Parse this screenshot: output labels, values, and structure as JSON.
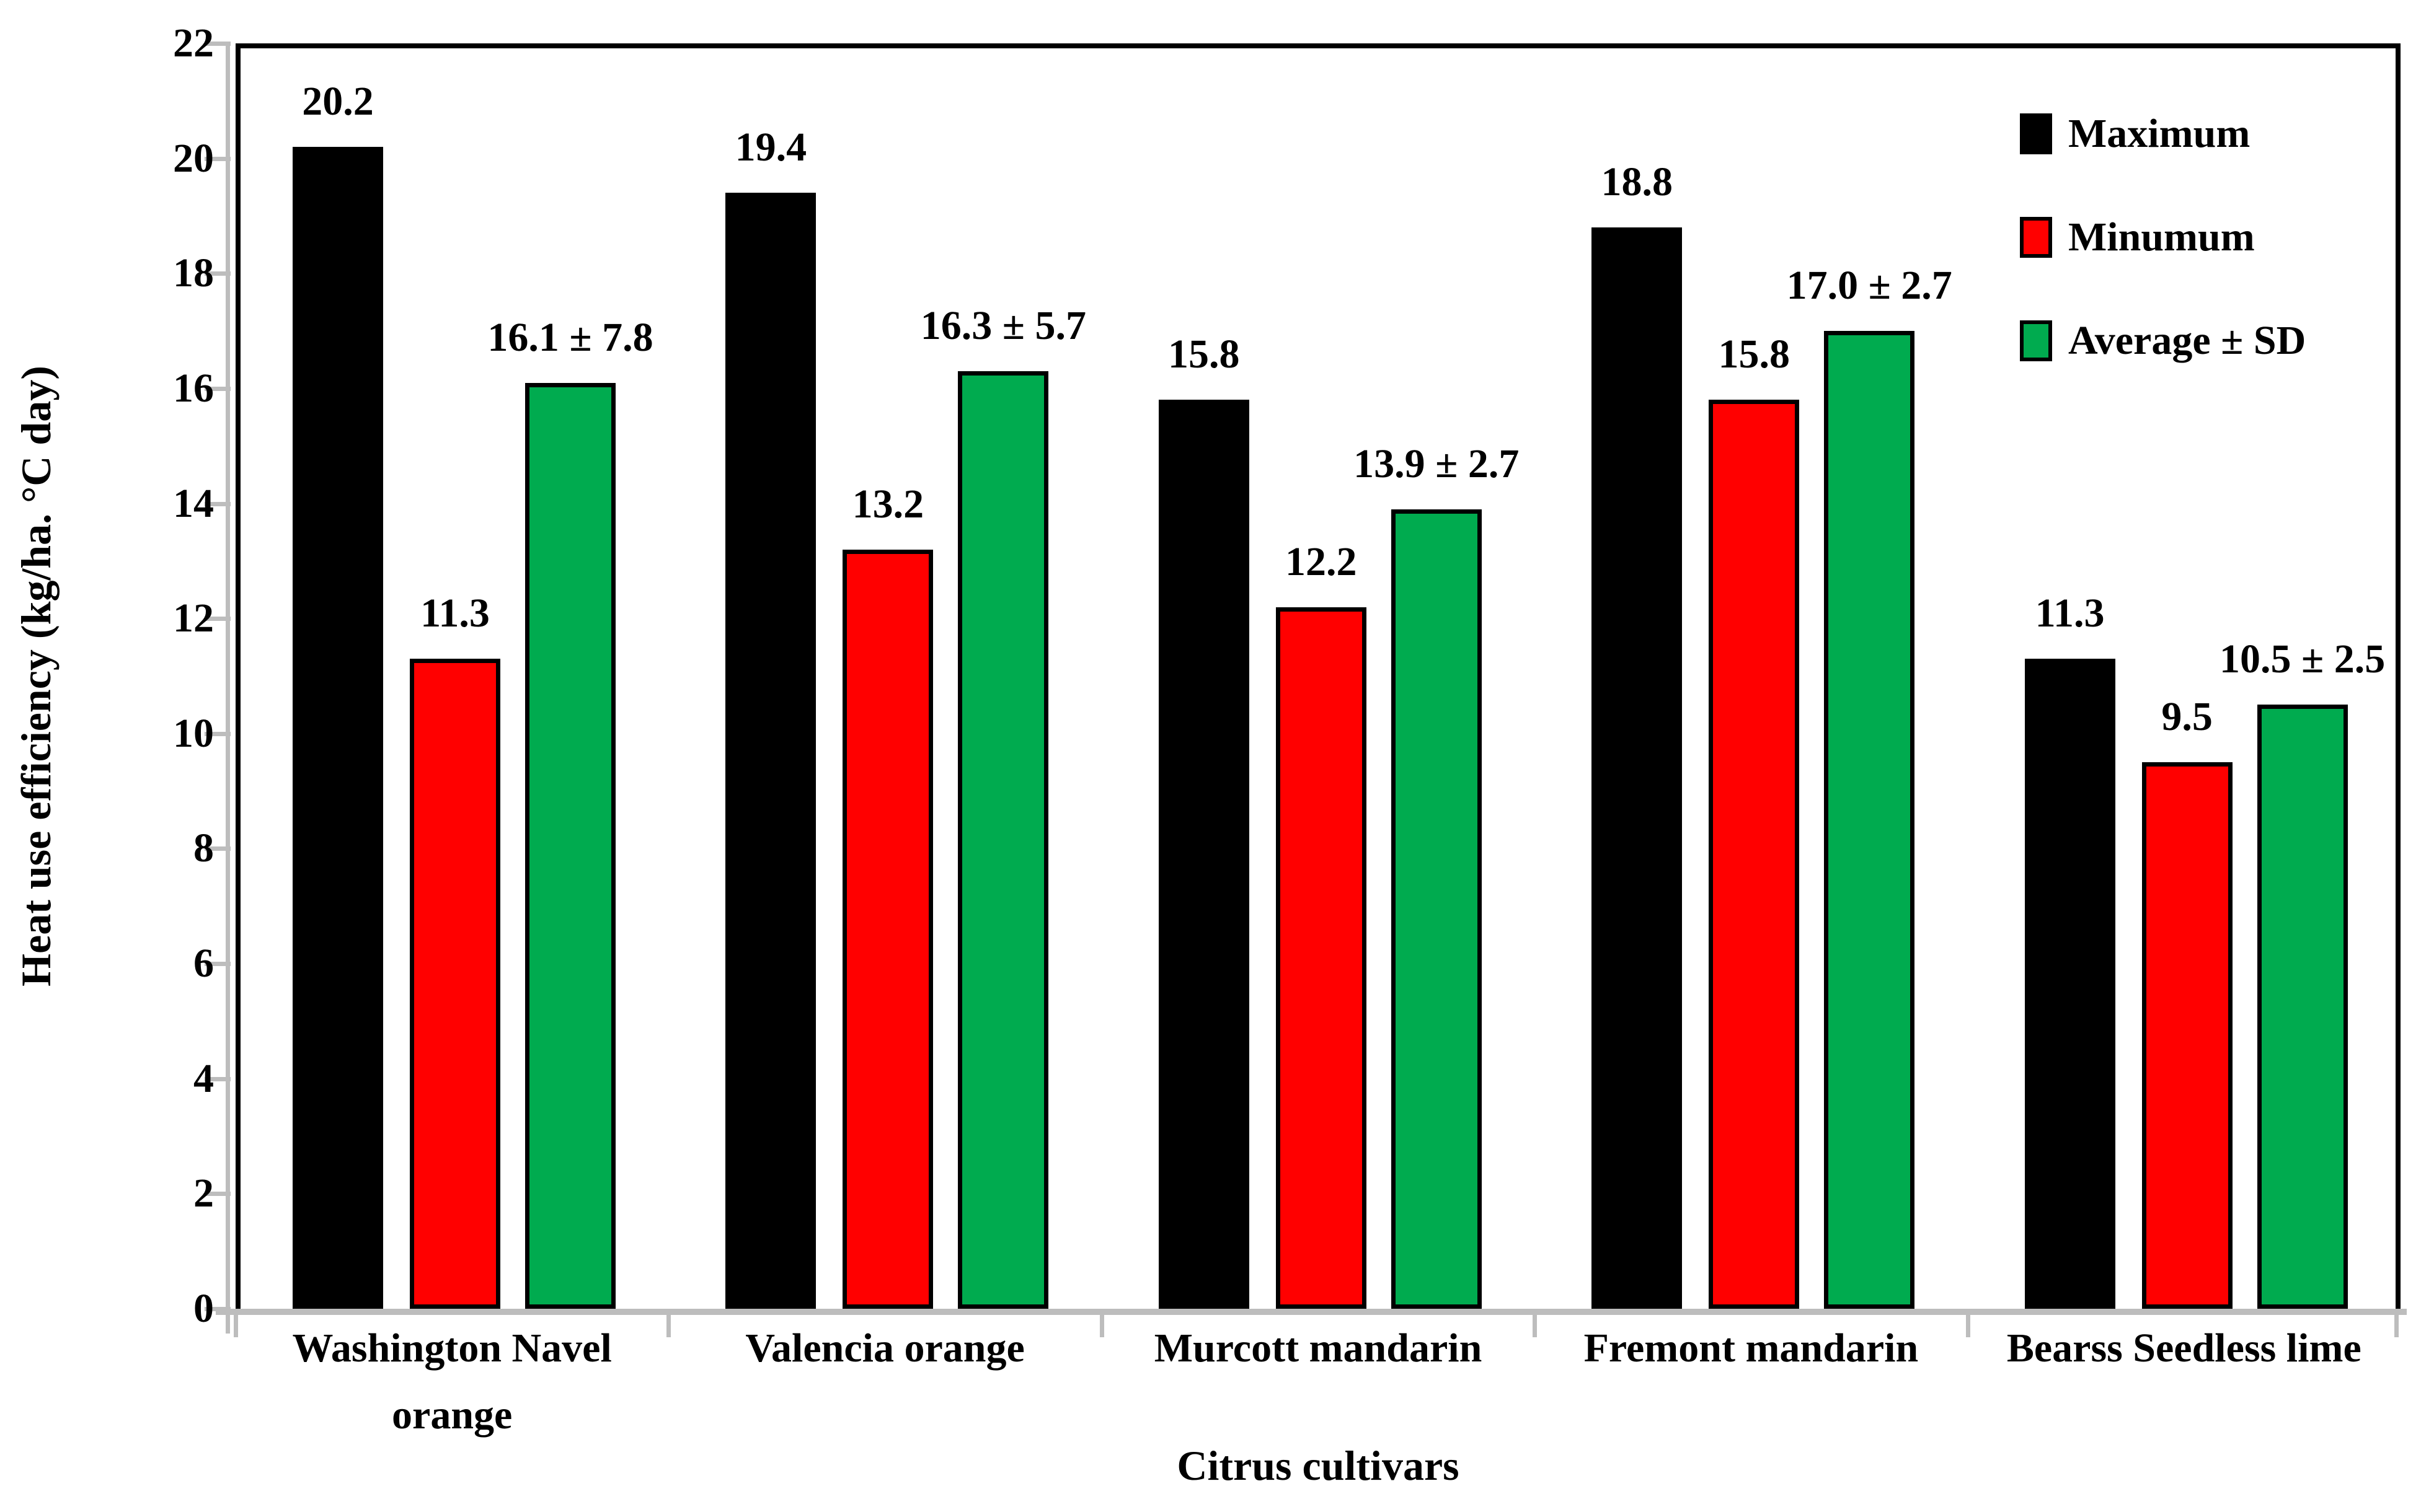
{
  "chart_data": {
    "type": "bar",
    "title": "",
    "xlabel": "Citrus cultivars",
    "ylabel": "Heat use efficiency (kg/ha. °C day)",
    "ylim": [
      0,
      22
    ],
    "yticks": [
      "0",
      "2",
      "4",
      "6",
      "8",
      "10",
      "12",
      "14",
      "16",
      "18",
      "20",
      "22"
    ],
    "grid": false,
    "legend_position": "top-right-inside",
    "categories": [
      "Washington Navel orange",
      "Valencia orange",
      "Murcott mandarin",
      "Fremont mandarin",
      "Bearss Seedless lime"
    ],
    "series": [
      {
        "name": "Maximum",
        "color": "#000000",
        "values": [
          20.2,
          19.4,
          15.8,
          18.8,
          11.3
        ],
        "labels": [
          "20.2",
          "19.4",
          "15.8",
          "18.8",
          "11.3"
        ]
      },
      {
        "name": "Minumum",
        "color": "#ff0000",
        "values": [
          11.3,
          13.2,
          12.2,
          15.8,
          9.5
        ],
        "labels": [
          "11.3",
          "13.2",
          "12.2",
          "15.8",
          "9.5"
        ]
      },
      {
        "name": "Average ± SD",
        "color": "#00ab4f",
        "values": [
          16.1,
          16.3,
          13.9,
          17.0,
          10.5
        ],
        "labels": [
          "16.1 ± 7.8",
          "16.3 ± 5.7",
          "13.9 ± 2.7",
          "17.0 ± 2.7",
          "10.5 ± 2.5"
        ]
      }
    ],
    "colors": {
      "axis_gray": "#bdbdbd",
      "frame_black": "#000000",
      "background": "#ffffff"
    }
  }
}
